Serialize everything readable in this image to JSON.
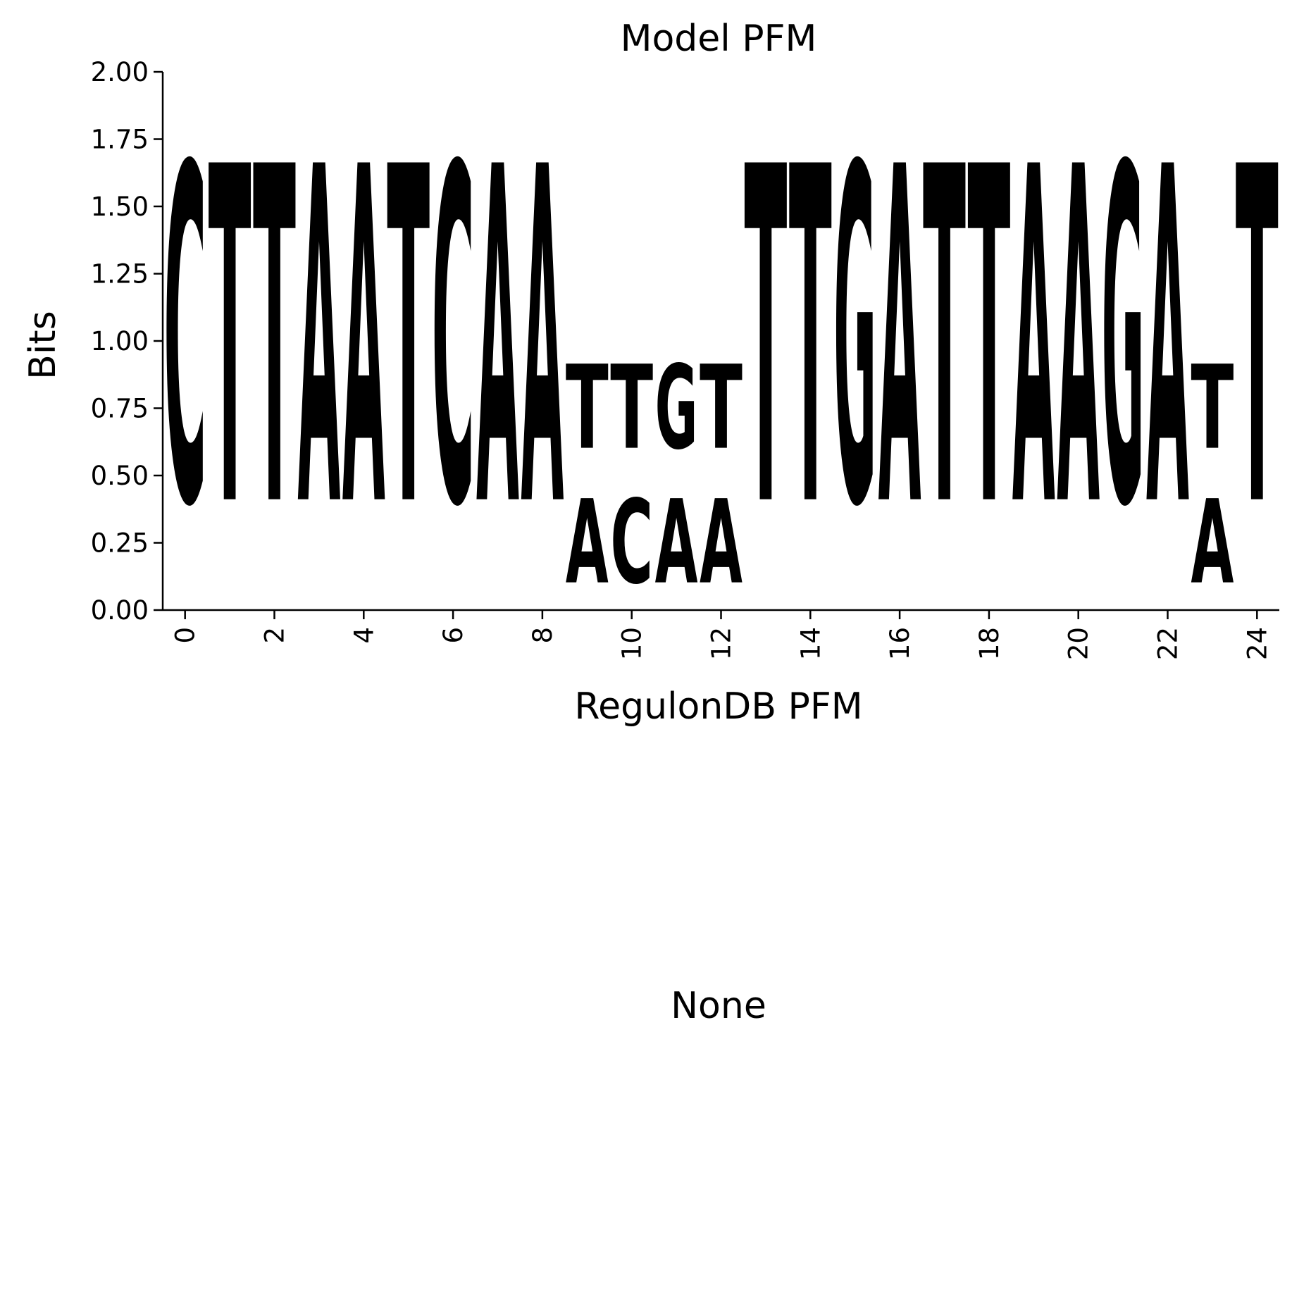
{
  "chart_data": [
    {
      "type": "sequence-logo",
      "title": "Model PFM",
      "xlabel": "RegulonDB PFM",
      "ylabel": "Bits",
      "ylim": [
        0,
        2
      ],
      "xlim": [
        -0.5,
        24.5
      ],
      "y_ticks": [
        "0.00",
        "0.25",
        "0.50",
        "0.75",
        "1.00",
        "1.25",
        "1.50",
        "1.75",
        "2.00"
      ],
      "x_ticks": [
        "0",
        "2",
        "4",
        "6",
        "8",
        "10",
        "12",
        "14",
        "16",
        "18",
        "20",
        "22",
        "24"
      ],
      "colors": {
        "A": "#ff0000",
        "C": "#0000ff",
        "G": "#ffa500",
        "T": "#008000"
      },
      "positions": [
        {
          "x": 0,
          "stack": [
            {
              "base": "C",
              "bits": 2.0
            }
          ]
        },
        {
          "x": 1,
          "stack": [
            {
              "base": "T",
              "bits": 2.0
            }
          ]
        },
        {
          "x": 2,
          "stack": [
            {
              "base": "T",
              "bits": 2.0
            }
          ]
        },
        {
          "x": 3,
          "stack": [
            {
              "base": "A",
              "bits": 2.0
            }
          ]
        },
        {
          "x": 4,
          "stack": [
            {
              "base": "A",
              "bits": 2.0
            }
          ]
        },
        {
          "x": 5,
          "stack": [
            {
              "base": "T",
              "bits": 2.0
            }
          ]
        },
        {
          "x": 6,
          "stack": [
            {
              "base": "C",
              "bits": 2.0
            }
          ]
        },
        {
          "x": 7,
          "stack": [
            {
              "base": "A",
              "bits": 2.0
            }
          ]
        },
        {
          "x": 8,
          "stack": [
            {
              "base": "A",
              "bits": 2.0
            }
          ]
        },
        {
          "x": 9,
          "stack": [
            {
              "base": "A",
              "bits": 0.5
            },
            {
              "base": "T",
              "bits": 0.5
            }
          ]
        },
        {
          "x": 10,
          "stack": [
            {
              "base": "C",
              "bits": 0.5
            },
            {
              "base": "T",
              "bits": 0.5
            }
          ]
        },
        {
          "x": 11,
          "stack": [
            {
              "base": "A",
              "bits": 0.5
            },
            {
              "base": "G",
              "bits": 0.5
            }
          ]
        },
        {
          "x": 12,
          "stack": [
            {
              "base": "A",
              "bits": 0.5
            },
            {
              "base": "T",
              "bits": 0.5
            }
          ]
        },
        {
          "x": 13,
          "stack": [
            {
              "base": "T",
              "bits": 2.0
            }
          ]
        },
        {
          "x": 14,
          "stack": [
            {
              "base": "T",
              "bits": 2.0
            }
          ]
        },
        {
          "x": 15,
          "stack": [
            {
              "base": "G",
              "bits": 2.0
            }
          ]
        },
        {
          "x": 16,
          "stack": [
            {
              "base": "A",
              "bits": 2.0
            }
          ]
        },
        {
          "x": 17,
          "stack": [
            {
              "base": "T",
              "bits": 2.0
            }
          ]
        },
        {
          "x": 18,
          "stack": [
            {
              "base": "T",
              "bits": 2.0
            }
          ]
        },
        {
          "x": 19,
          "stack": [
            {
              "base": "A",
              "bits": 2.0
            }
          ]
        },
        {
          "x": 20,
          "stack": [
            {
              "base": "A",
              "bits": 2.0
            }
          ]
        },
        {
          "x": 21,
          "stack": [
            {
              "base": "G",
              "bits": 2.0
            }
          ]
        },
        {
          "x": 22,
          "stack": [
            {
              "base": "A",
              "bits": 2.0
            }
          ]
        },
        {
          "x": 23,
          "stack": [
            {
              "base": "A",
              "bits": 0.5
            },
            {
              "base": "T",
              "bits": 0.5
            }
          ]
        },
        {
          "x": 24,
          "stack": [
            {
              "base": "T",
              "bits": 2.0
            }
          ]
        }
      ]
    },
    {
      "type": "empty",
      "title": "None"
    }
  ]
}
